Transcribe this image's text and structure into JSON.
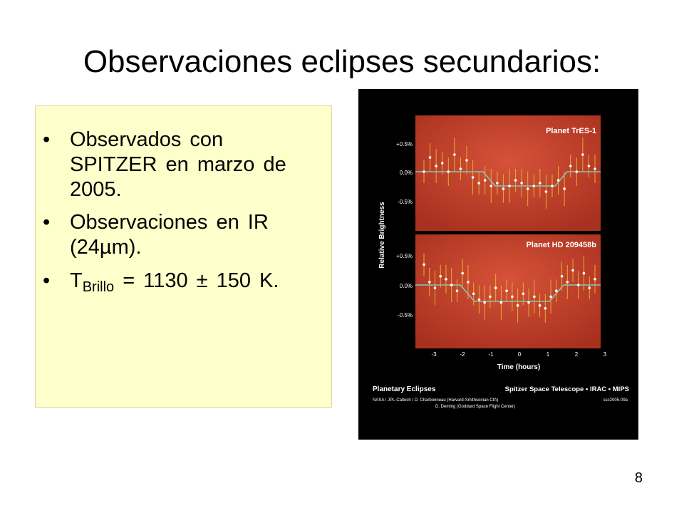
{
  "slide": {
    "title": "Observaciones eclipses secundarios:",
    "page_number": "8"
  },
  "bullets": [
    {
      "text": "Observados con SPITZER en marzo de 2005."
    },
    {
      "text": "Observaciones en IR (24µm)."
    },
    {
      "prefix": "T",
      "subscript": "Brillo",
      "suffix": " = 1130 ± 150 K."
    }
  ],
  "figure": {
    "panel_labels": [
      "Planet TrES-1",
      "Planet HD 209458b"
    ],
    "y_ticks": [
      "+0.5%",
      "0.0%",
      "-0.5%"
    ],
    "x_ticks": [
      "-3",
      "-2",
      "-1",
      "0",
      "1",
      "2",
      "3"
    ],
    "y_axis_label": "Relative Brightness",
    "x_axis_label": "Time (hours)",
    "caption_title": "Planetary Eclipses",
    "caption_subtitle": "Spitzer Space Telescope • IRAC • MIPS",
    "credit_line1": "NASA / JPL-Caltech / D. Charbonneau (Harvard-Smithsonian CfA)",
    "credit_line2": "D. Deming (Goddard Space Flight Center)",
    "image_id": "ssc2005-09a",
    "colors": {
      "panel_red": "#c8402c",
      "model_line": "#7ec8c0",
      "point": "#ffffff",
      "error_bar": "#e0b030"
    },
    "series": [
      {
        "name": "Planet TrES-1",
        "values": [
          0.0,
          0.25,
          0.1,
          0.15,
          0.0,
          0.3,
          0.05,
          0.2,
          -0.1,
          -0.2,
          -0.15,
          -0.25,
          -0.2,
          -0.3,
          -0.25,
          -0.15,
          -0.2,
          -0.3,
          -0.25,
          -0.2,
          -0.35,
          -0.25,
          -0.15,
          -0.3,
          0.1,
          0.0,
          0.3,
          0.1,
          0.05
        ]
      },
      {
        "name": "Planet HD 209458b",
        "values": [
          0.35,
          0.05,
          -0.05,
          0.15,
          0.1,
          0.0,
          -0.1,
          0.2,
          0.05,
          -0.15,
          -0.25,
          -0.3,
          -0.2,
          -0.05,
          -0.3,
          -0.1,
          -0.2,
          -0.35,
          -0.15,
          -0.3,
          -0.2,
          -0.35,
          -0.4,
          -0.2,
          -0.1,
          0.15,
          0.05,
          0.25,
          0.0,
          0.2,
          -0.05,
          0.1
        ]
      }
    ]
  }
}
